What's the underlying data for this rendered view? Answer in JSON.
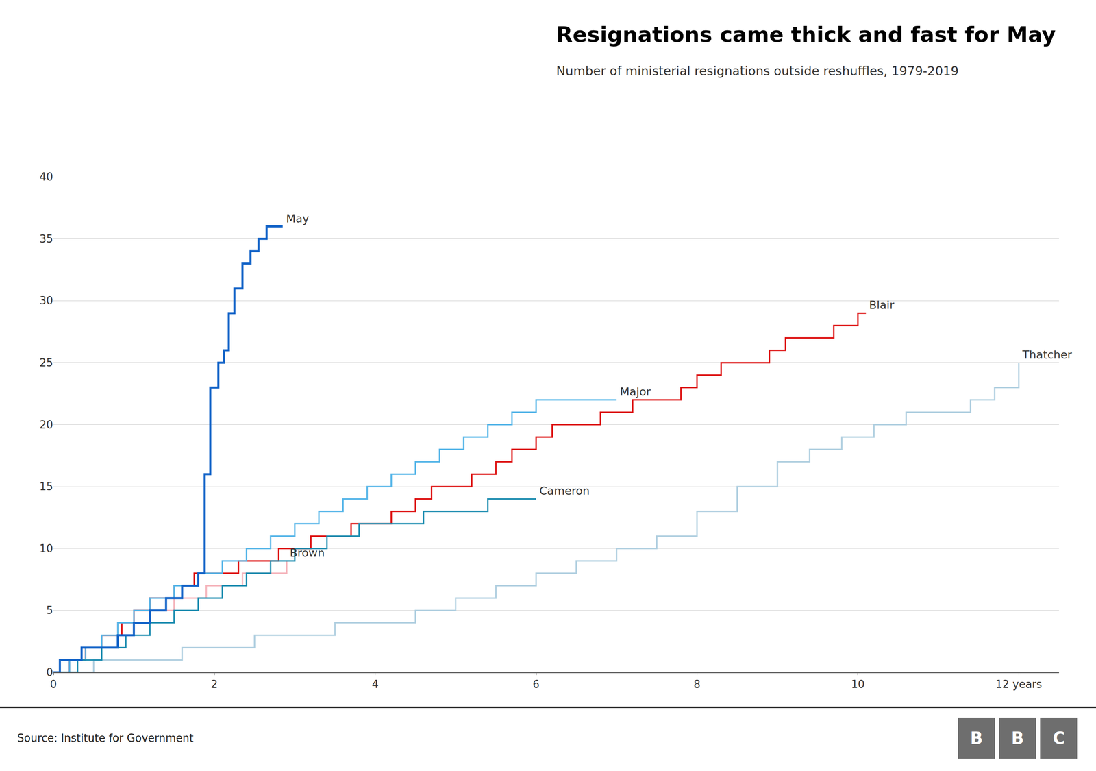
{
  "chart_data": {
    "type": "step",
    "title": "Resignations came thick and fast for May",
    "subtitle": "Number of ministerial resignations outside reshuffles, 1979-2019",
    "source": "Source: Institute for Government",
    "logo": "BBC",
    "series": [
      {
        "name": "Thatcher",
        "color": "#b0cfe0",
        "x": [
          0,
          0.5,
          0.8,
          1.2,
          1.6,
          2.0,
          2.5,
          3.0,
          3.5,
          4.0,
          4.5,
          5.0,
          5.5,
          6.0,
          6.5,
          7.0,
          7.5,
          8.0,
          8.5,
          9.0,
          9.4,
          9.8,
          10.2,
          10.6,
          11.0,
          11.4,
          11.7,
          12.0
        ],
        "values": [
          0,
          1,
          1,
          1,
          2,
          2,
          3,
          3,
          4,
          4,
          5,
          6,
          7,
          8,
          9,
          10,
          11,
          13,
          15,
          17,
          18,
          19,
          20,
          21,
          21,
          22,
          23,
          25
        ]
      },
      {
        "name": "Brown",
        "color": "#f5b5bc",
        "x": [
          0,
          0.2,
          0.4,
          0.6,
          0.8,
          1.0,
          1.15,
          1.3,
          1.5,
          1.7,
          1.9,
          2.1,
          2.35,
          2.6,
          2.9
        ],
        "values": [
          0,
          1,
          2,
          3,
          4,
          5,
          5,
          5,
          6,
          6,
          7,
          7,
          8,
          8,
          9
        ]
      },
      {
        "name": "Blair",
        "color": "#dd1111",
        "x": [
          0,
          0.2,
          0.4,
          0.6,
          0.85,
          1.0,
          1.2,
          1.5,
          1.75,
          2.0,
          2.3,
          2.5,
          2.8,
          3.0,
          3.2,
          3.5,
          3.7,
          4.0,
          4.2,
          4.5,
          4.7,
          5.0,
          5.2,
          5.5,
          5.7,
          6.0,
          6.2,
          6.5,
          6.8,
          7.0,
          7.2,
          7.5,
          7.8,
          8.0,
          8.3,
          8.6,
          8.9,
          9.1,
          9.4,
          9.7,
          10.0,
          10.1
        ],
        "values": [
          0,
          1,
          2,
          3,
          4,
          5,
          6,
          7,
          8,
          8,
          9,
          9,
          10,
          10,
          11,
          11,
          12,
          12,
          13,
          14,
          15,
          15,
          16,
          17,
          18,
          19,
          20,
          20,
          21,
          21,
          22,
          22,
          23,
          24,
          25,
          25,
          26,
          27,
          27,
          28,
          29,
          29
        ]
      },
      {
        "name": "Major",
        "color": "#55b5e8",
        "x": [
          0,
          0.2,
          0.4,
          0.6,
          0.8,
          1.0,
          1.2,
          1.5,
          1.8,
          2.1,
          2.4,
          2.7,
          3.0,
          3.3,
          3.6,
          3.9,
          4.2,
          4.5,
          4.8,
          5.1,
          5.4,
          5.7,
          6.0,
          6.5,
          7.0
        ],
        "values": [
          0,
          1,
          2,
          3,
          4,
          5,
          6,
          7,
          8,
          9,
          10,
          11,
          12,
          13,
          14,
          15,
          16,
          17,
          18,
          19,
          20,
          21,
          22,
          22,
          22
        ]
      },
      {
        "name": "Cameron",
        "color": "#1e8db0",
        "x": [
          0,
          0.3,
          0.6,
          0.9,
          1.2,
          1.5,
          1.8,
          2.1,
          2.4,
          2.7,
          3.0,
          3.4,
          3.8,
          4.2,
          4.6,
          5.0,
          5.4,
          6.0
        ],
        "values": [
          0,
          1,
          2,
          3,
          4,
          5,
          6,
          7,
          8,
          9,
          10,
          11,
          12,
          12,
          13,
          13,
          14,
          14
        ]
      },
      {
        "name": "May",
        "color": "#1464c8",
        "x": [
          0,
          0.08,
          0.15,
          0.25,
          0.35,
          0.5,
          0.6,
          0.7,
          0.8,
          0.9,
          1.0,
          1.1,
          1.2,
          1.3,
          1.4,
          1.5,
          1.6,
          1.7,
          1.8,
          1.88,
          1.95,
          2.05,
          2.12,
          2.18,
          2.25,
          2.35,
          2.45,
          2.55,
          2.65,
          2.72,
          2.78,
          2.85
        ],
        "values": [
          0,
          1,
          1,
          1,
          2,
          2,
          2,
          2,
          3,
          3,
          4,
          4,
          5,
          5,
          6,
          6,
          7,
          7,
          8,
          16,
          23,
          25,
          26,
          29,
          31,
          33,
          34,
          35,
          36,
          36,
          36,
          36
        ]
      }
    ],
    "xlim": [
      0,
      12.5
    ],
    "ylim": [
      0,
      40
    ],
    "xticks": [
      0,
      2,
      4,
      6,
      8,
      10,
      {
        "value": 12,
        "label": "12 years"
      }
    ],
    "yticks": [
      0,
      5,
      10,
      15,
      20,
      25,
      30,
      35,
      40
    ],
    "grid": "y"
  }
}
